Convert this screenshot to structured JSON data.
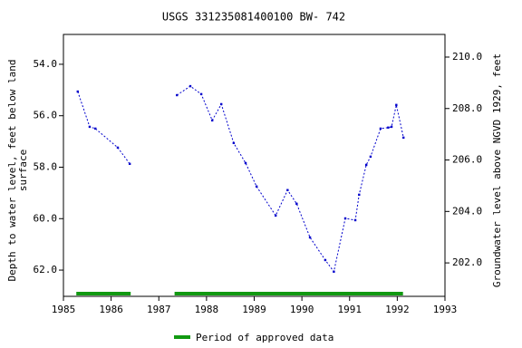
{
  "chart_data": {
    "type": "line",
    "title": "USGS 331235081400100 BW- 742",
    "y_label": [
      "Depth to water level, feet below land",
      "surface"
    ],
    "y2_label": "Groundwater level above NGVD 1929, feet",
    "x": [
      1985.3,
      1985.55,
      1985.67,
      1986.14,
      1986.39,
      null,
      1987.38,
      1987.66,
      1987.89,
      1988.12,
      1988.31,
      1988.57,
      1988.82,
      1989.05,
      1989.45,
      1989.7,
      1989.89,
      1990.17,
      1990.49,
      1990.67,
      1990.91,
      1991.12,
      1991.2,
      1991.35,
      1991.44,
      1991.65,
      1991.81,
      1991.88,
      1991.98,
      1992.13
    ],
    "series": [
      {
        "color": "#0000cc",
        "values": [
          55.06,
          56.43,
          56.5,
          57.24,
          57.87,
          null,
          55.2,
          54.85,
          55.16,
          56.18,
          55.55,
          57.06,
          57.84,
          58.75,
          59.88,
          58.89,
          59.42,
          60.73,
          61.61,
          62.06,
          59.99,
          60.06,
          59.07,
          57.91,
          57.59,
          56.5,
          56.46,
          56.43,
          55.58,
          56.85
        ]
      }
    ],
    "xlim": [
      1985,
      1993
    ],
    "xticks": [
      1985,
      1986,
      1987,
      1988,
      1989,
      1990,
      1991,
      1992,
      1993
    ],
    "ylim": [
      52.84,
      63.02
    ],
    "yticks": [
      {
        "value": 54,
        "label": "54.0"
      },
      {
        "value": 56,
        "label": "56.0"
      },
      {
        "value": 58,
        "label": "58.0"
      },
      {
        "value": 60,
        "label": "60.0"
      },
      {
        "value": 62,
        "label": "62.0"
      }
    ],
    "y2lim": [
      210.88,
      200.7
    ],
    "y2ticks": [
      {
        "value": 202,
        "label": "202.0"
      },
      {
        "value": 204,
        "label": "204.0"
      },
      {
        "value": 206,
        "label": "206.0"
      },
      {
        "value": 208,
        "label": "208.0"
      },
      {
        "value": 210,
        "label": "210.0"
      }
    ],
    "periods": [
      [
        1985.27,
        1986.41
      ],
      [
        1987.33,
        1992.12
      ]
    ],
    "period_color": "#119911",
    "legend": "Period of approved data"
  }
}
